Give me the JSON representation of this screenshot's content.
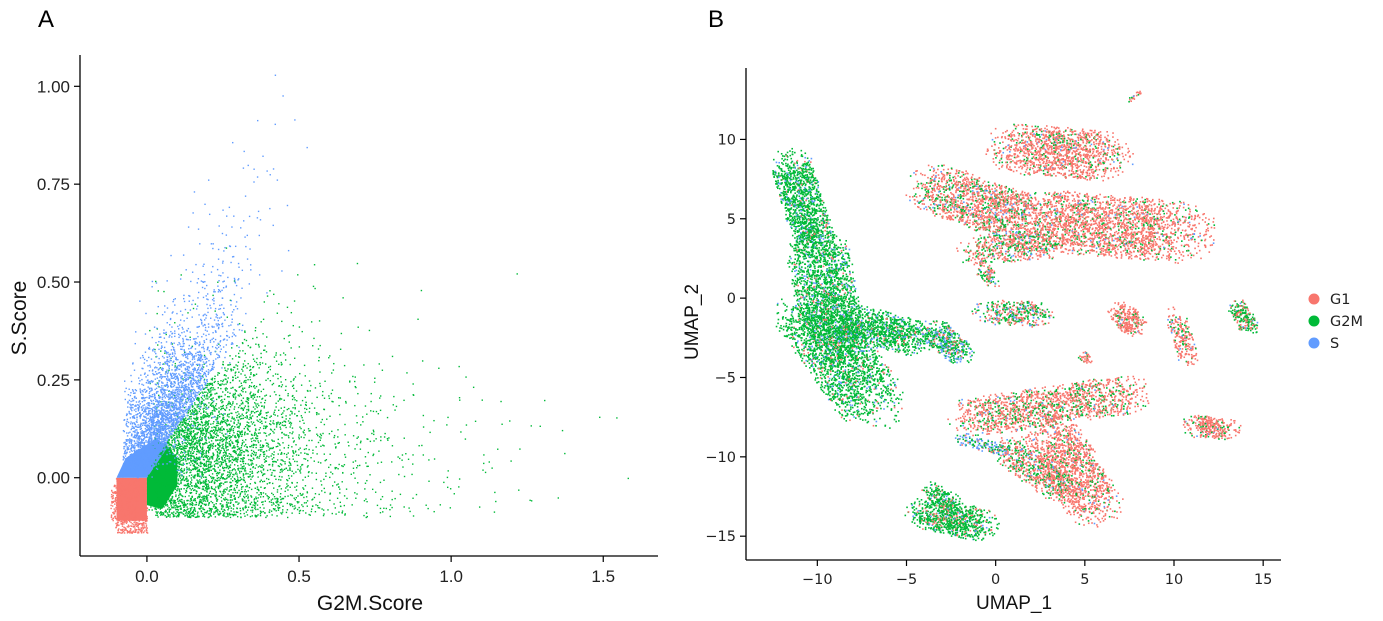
{
  "panels": {
    "a_label": "A",
    "b_label": "B"
  },
  "legend": {
    "items": [
      {
        "label": "G1",
        "color": "#F8766D"
      },
      {
        "label": "G2M",
        "color": "#00BA38"
      },
      {
        "label": "S",
        "color": "#619CFF"
      }
    ]
  },
  "chart_data": [
    {
      "type": "scatter",
      "panel": "A",
      "xlabel": "G2M.Score",
      "ylabel": "S.Score",
      "xlim": [
        -0.22,
        1.68
      ],
      "ylim": [
        -0.2,
        1.08
      ],
      "xticks": [
        0.0,
        0.5,
        1.0,
        1.5
      ],
      "xtick_labels": [
        "0.0",
        "0.5",
        "1.0",
        "1.5"
      ],
      "yticks": [
        0.0,
        0.25,
        0.5,
        0.75,
        1.0
      ],
      "ytick_labels": [
        "0.00",
        "0.25",
        "0.50",
        "0.75",
        "1.00"
      ],
      "grid": false,
      "series": [
        {
          "name": "G1",
          "color": "#F8766D",
          "region": {
            "x": [
              -0.1,
              0.0
            ],
            "y": [
              -0.11,
              0.0
            ]
          }
        },
        {
          "name": "G2M",
          "color": "#00BA38",
          "points_sample": [
            [
              0.05,
              0.02
            ],
            [
              0.1,
              0.0
            ],
            [
              0.3,
              0.15
            ],
            [
              0.5,
              0.1
            ],
            [
              0.7,
              0.3
            ],
            [
              0.9,
              0.05
            ],
            [
              1.1,
              0.2
            ],
            [
              1.35,
              -0.05
            ],
            [
              1.58,
              0.0
            ]
          ]
        },
        {
          "name": "S",
          "color": "#619CFF",
          "points_sample": [
            [
              -0.02,
              0.05
            ],
            [
              0.02,
              0.2
            ],
            [
              0.05,
              0.4
            ],
            [
              0.15,
              0.5
            ],
            [
              0.3,
              0.6
            ],
            [
              0.35,
              0.79
            ],
            [
              0.42,
              1.03
            ]
          ]
        }
      ]
    },
    {
      "type": "scatter",
      "panel": "B",
      "xlabel": "UMAP_1",
      "ylabel": "UMAP_2",
      "xlim": [
        -14,
        16
      ],
      "ylim": [
        -16.5,
        14.5
      ],
      "xticks": [
        -10,
        -5,
        0,
        5,
        10,
        15
      ],
      "xtick_labels": [
        "−10",
        "−5",
        "0",
        "5",
        "10",
        "15"
      ],
      "yticks": [
        -15,
        -10,
        -5,
        0,
        5,
        10
      ],
      "ytick_labels": [
        "−15",
        "−10",
        "−5",
        "0",
        "5",
        "10"
      ],
      "grid": false,
      "legend_position": "right",
      "series": [
        {
          "name": "G1",
          "color": "#F8766D"
        },
        {
          "name": "G2M",
          "color": "#00BA38"
        },
        {
          "name": "S",
          "color": "#619CFF"
        }
      ],
      "clusters": [
        {
          "center": [
            -9.5,
            6.5
          ],
          "spread": [
            1.3,
            2.5
          ],
          "mix": [
            0.05,
            0.85,
            0.1
          ]
        },
        {
          "center": [
            -9.0,
            -2.5
          ],
          "spread": [
            2.3,
            2.8
          ],
          "mix": [
            0.05,
            0.85,
            0.1
          ]
        },
        {
          "center": [
            -3.5,
            -2.5
          ],
          "spread": [
            1.2,
            1.0
          ],
          "mix": [
            0.15,
            0.6,
            0.25
          ]
        },
        {
          "center": [
            4.5,
            6.0
          ],
          "spread": [
            4.2,
            2.3
          ],
          "mix": [
            0.82,
            0.15,
            0.03
          ]
        },
        {
          "center": [
            -2.5,
            -13.6
          ],
          "spread": [
            1.3,
            0.8
          ],
          "mix": [
            0.15,
            0.8,
            0.05
          ]
        },
        {
          "center": [
            3.5,
            -9.0
          ],
          "spread": [
            3.2,
            2.3
          ],
          "mix": [
            0.78,
            0.2,
            0.02
          ]
        }
      ]
    }
  ]
}
